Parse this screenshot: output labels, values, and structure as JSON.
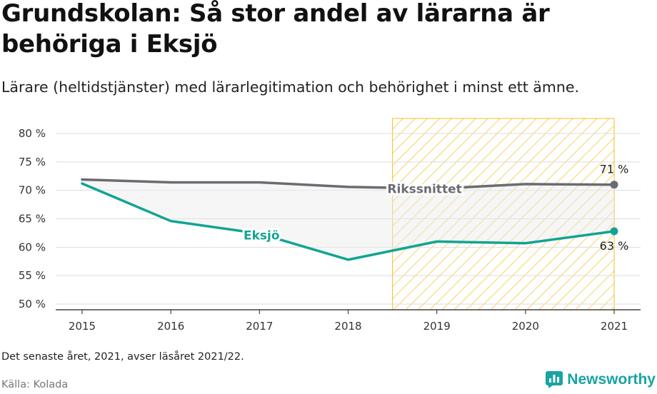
{
  "title": "Grundskolan: Så stor andel av lärarna är behöriga i Eksjö",
  "subtitle": "Lärare (heltidstjänster) med lärarlegitimation och behörighet i minst ett ämne.",
  "note": "Det senaste året, 2021, avser läsåret 2021/22.",
  "source": "Källa: Kolada",
  "brand": "Newsworthy",
  "colors": {
    "rikssnittet": "#6b6b73",
    "eksjo": "#12a493",
    "highlight": "#f5c842"
  },
  "chart_data": {
    "type": "line",
    "title": "Grundskolan: Så stor andel av lärarna är behöriga i Eksjö",
    "x": [
      "2015",
      "2016",
      "2017",
      "2018",
      "2019",
      "2020",
      "2021"
    ],
    "ylim": [
      50,
      80
    ],
    "yticks": [
      50,
      55,
      60,
      65,
      70,
      75,
      80
    ],
    "ytick_labels": [
      "50 %",
      "55 %",
      "60 %",
      "65 %",
      "70 %",
      "75 %",
      "80 %"
    ],
    "grid": true,
    "highlight_range": [
      "2019",
      "2021"
    ],
    "series": [
      {
        "name": "Rikssnittet",
        "values": [
          71.9,
          71.4,
          71.4,
          70.6,
          70.3,
          71.1,
          71.0
        ],
        "end_label": "71 %"
      },
      {
        "name": "Eksjö",
        "values": [
          71.2,
          64.6,
          62.4,
          57.8,
          61.0,
          60.7,
          62.8
        ],
        "end_label": "63 %"
      }
    ]
  }
}
